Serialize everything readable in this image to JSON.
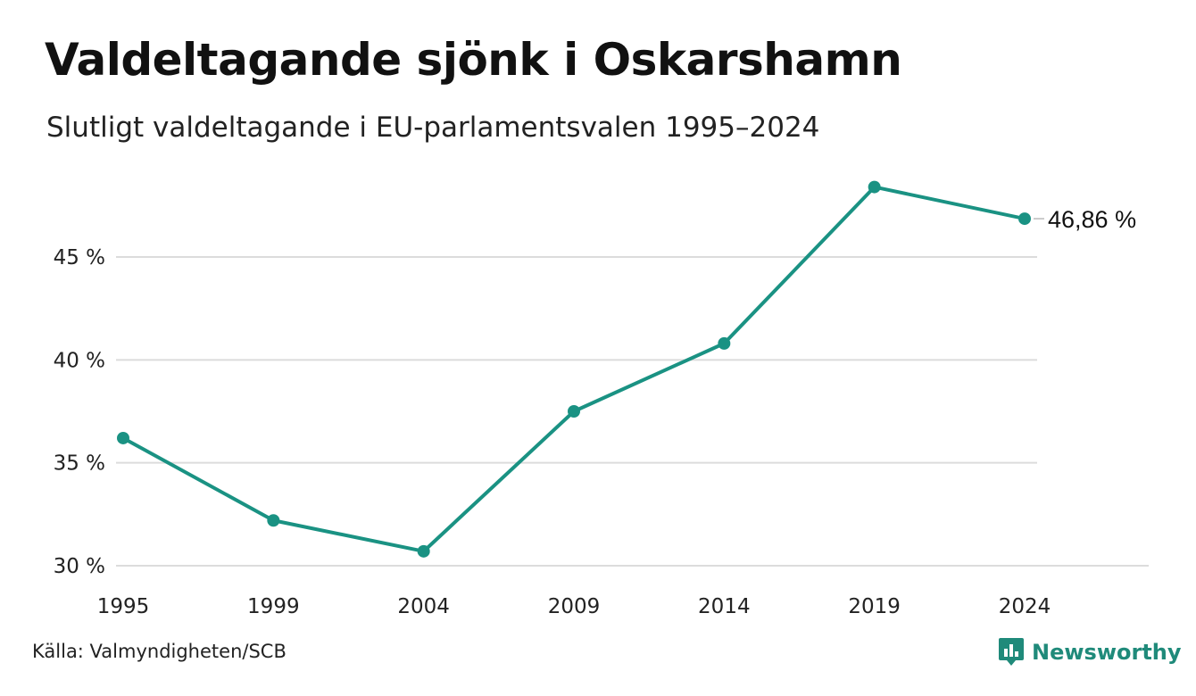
{
  "header": {
    "title": "Valdeltagande sjönk i Oskarshamn",
    "subtitle": "Slutligt valdeltagande i EU-parlamentsvalen 1995–2024"
  },
  "footer": {
    "source": "Källa: Valmyndigheten/SCB",
    "brand": "Newsworthy",
    "brand_icon": "bar-chart-speech-bubble-icon"
  },
  "colors": {
    "line": "#1a9283",
    "grid": "#dcdcdc",
    "brand": "#1f8a7a"
  },
  "chart_data": {
    "type": "line",
    "x": [
      "1995",
      "1999",
      "2004",
      "2009",
      "2014",
      "2019",
      "2024"
    ],
    "series": [
      {
        "values": [
          36.2,
          32.2,
          30.7,
          37.5,
          40.8,
          48.4,
          46.86
        ]
      }
    ],
    "ylim": [
      30,
      50
    ],
    "yticks": [
      30,
      35,
      40,
      45
    ],
    "ytick_labels": [
      "30 %",
      "35 %",
      "40 %",
      "45 %"
    ],
    "end_label": "46,86 %",
    "grid": true,
    "legend": "none"
  }
}
